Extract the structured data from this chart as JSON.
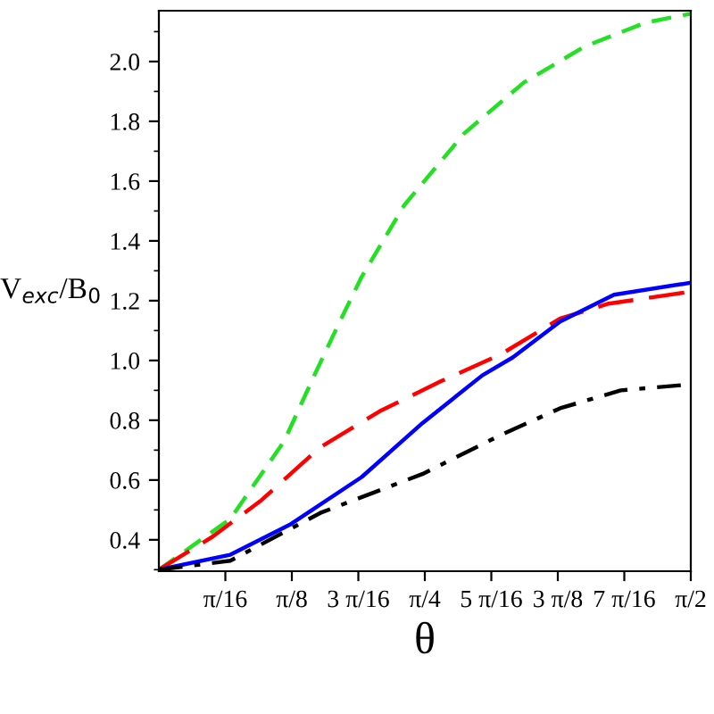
{
  "chart_data": {
    "type": "line",
    "xlabel": "θ",
    "ylabel": "V$_{exc}$/B$_{0}$",
    "xlim": [
      0,
      1.5708
    ],
    "xticks": [
      {
        "value": 0.19635,
        "label": "π/16"
      },
      {
        "value": 0.3927,
        "label": "π/8"
      },
      {
        "value": 0.58905,
        "label": "3 π/16"
      },
      {
        "value": 0.7854,
        "label": "π/4"
      },
      {
        "value": 0.98175,
        "label": "5 π/16"
      },
      {
        "value": 1.1781,
        "label": "3 π/8"
      },
      {
        "value": 1.37445,
        "label": "7 π/16"
      },
      {
        "value": 1.5708,
        "label": "π/2"
      }
    ],
    "ylim": [
      0.295,
      2.17
    ],
    "yticks": [
      {
        "value": 0.4,
        "label": "0.4"
      },
      {
        "value": 0.6,
        "label": "0.6"
      },
      {
        "value": 0.8,
        "label": "0.8"
      },
      {
        "value": 1.0,
        "label": "1.0"
      },
      {
        "value": 1.2,
        "label": "1.2"
      },
      {
        "value": 1.4,
        "label": "1.4"
      },
      {
        "value": 1.6,
        "label": "1.6"
      },
      {
        "value": 1.8,
        "label": "1.8"
      },
      {
        "value": 2.0,
        "label": "2.0"
      }
    ],
    "grid": false,
    "legend": false,
    "series": [
      {
        "color": "#22e022",
        "line_style": "dashed",
        "x": [
          0,
          0.211,
          0.37,
          0.459,
          0.53,
          0.599,
          0.725,
          0.902,
          1.078,
          1.257,
          1.437,
          1.5708
        ],
        "values": [
          0.3,
          0.47,
          0.73,
          0.95,
          1.12,
          1.28,
          1.52,
          1.76,
          1.93,
          2.05,
          2.13,
          2.16
        ]
      },
      {
        "color": "#ff0000",
        "line_style": "longdashed",
        "x": [
          0,
          0.158,
          0.3,
          0.477,
          0.652,
          0.832,
          1.009,
          1.185,
          1.328,
          1.5708
        ],
        "values": [
          0.3,
          0.41,
          0.53,
          0.71,
          0.83,
          0.93,
          1.02,
          1.14,
          1.19,
          1.23
        ]
      },
      {
        "color": "#0000ff",
        "line_style": "solid",
        "x": [
          0,
          0.211,
          0.386,
          0.599,
          0.778,
          0.955,
          1.045,
          1.185,
          1.344,
          1.5708
        ],
        "values": [
          0.3,
          0.35,
          0.45,
          0.61,
          0.79,
          0.95,
          1.01,
          1.13,
          1.22,
          1.26
        ]
      },
      {
        "color": "#000000",
        "line_style": "dashdot",
        "x": [
          0,
          0.211,
          0.477,
          0.778,
          1.009,
          1.185,
          1.364,
          1.5708
        ],
        "values": [
          0.3,
          0.33,
          0.49,
          0.62,
          0.75,
          0.84,
          0.9,
          0.92
        ]
      }
    ]
  }
}
